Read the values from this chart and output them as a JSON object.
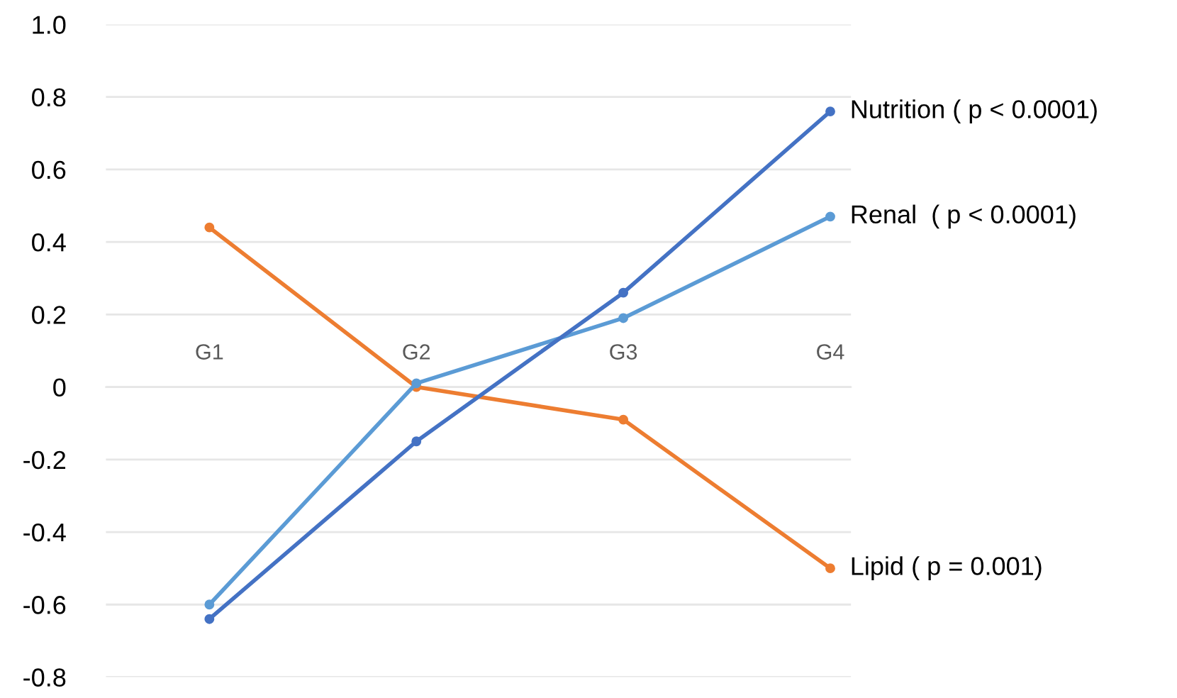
{
  "chart_data": {
    "type": "line",
    "categories": [
      "G1",
      "G2",
      "G3",
      "G4"
    ],
    "series": [
      {
        "name": "Nutrition ( p < 0.0001)",
        "color": "#4472c4",
        "values": [
          -0.64,
          -0.15,
          0.26,
          0.76
        ]
      },
      {
        "name": "Renal  ( p < 0.0001)",
        "color": "#5b9bd5",
        "values": [
          -0.6,
          0.01,
          0.19,
          0.47
        ]
      },
      {
        "name": "Lipid ( p = 0.001)",
        "color": "#ed7d31",
        "values": [
          0.44,
          0.0,
          -0.09,
          -0.5
        ]
      }
    ],
    "ylim": [
      -0.8,
      1.0
    ],
    "yticks": [
      -0.8,
      -0.6,
      -0.4,
      -0.2,
      {
        "value": 0,
        "label": "0"
      },
      0.2,
      0.4,
      0.6,
      0.8,
      {
        "value": 1.0,
        "label": "1.0"
      }
    ],
    "grid": "y",
    "legend": false,
    "marker": "circle",
    "line_style": "solid"
  }
}
